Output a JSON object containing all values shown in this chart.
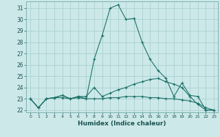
{
  "xlabel": "Humidex (Indice chaleur)",
  "ylabel": "",
  "background_color": "#cce8e8",
  "grid_color": "#aad0d0",
  "line_color": "#1a7068",
  "xlim": [
    -0.5,
    23.5
  ],
  "ylim": [
    21.8,
    31.6
  ],
  "yticks": [
    22,
    23,
    24,
    25,
    26,
    27,
    28,
    29,
    30,
    31
  ],
  "xticks": [
    0,
    1,
    2,
    3,
    4,
    5,
    6,
    7,
    8,
    9,
    10,
    11,
    12,
    13,
    14,
    15,
    16,
    17,
    18,
    19,
    20,
    21,
    22,
    23
  ],
  "series": [
    [
      23.0,
      22.2,
      23.0,
      23.1,
      23.3,
      23.0,
      23.2,
      23.0,
      26.5,
      28.6,
      31.0,
      31.3,
      30.0,
      30.1,
      28.0,
      26.5,
      25.5,
      24.8,
      23.2,
      24.4,
      23.3,
      23.2,
      22.0,
      22.0
    ],
    [
      23.0,
      22.2,
      23.0,
      23.1,
      23.3,
      23.0,
      23.2,
      23.2,
      24.0,
      23.2,
      23.5,
      23.8,
      24.0,
      24.3,
      24.5,
      24.7,
      24.8,
      24.5,
      24.3,
      24.0,
      23.2,
      22.5,
      22.0,
      22.0
    ],
    [
      23.0,
      22.2,
      23.0,
      23.1,
      23.1,
      23.0,
      23.1,
      23.0,
      23.0,
      23.0,
      23.1,
      23.1,
      23.2,
      23.2,
      23.2,
      23.1,
      23.1,
      23.0,
      23.0,
      22.9,
      22.8,
      22.6,
      22.2,
      22.0
    ]
  ]
}
